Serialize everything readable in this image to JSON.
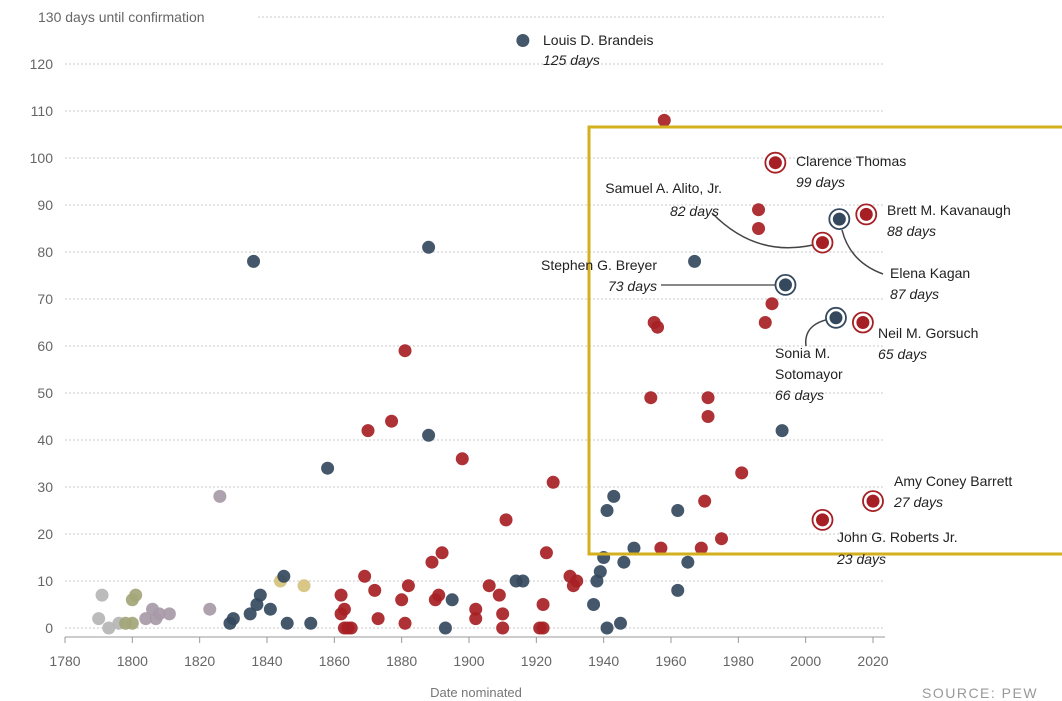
{
  "chart_data": {
    "type": "scatter",
    "title": "",
    "ylabel": "130 days until confirmation",
    "xlabel": "Date nominated",
    "xlim": [
      1780,
      2020
    ],
    "ylim": [
      0,
      130
    ],
    "x_ticks": [
      "1780",
      "1800",
      "1820",
      "1840",
      "1860",
      "1880",
      "1900",
      "1920",
      "1940",
      "1960",
      "1980",
      "2000",
      "2020"
    ],
    "y_ticks": [
      "0",
      "10",
      "20",
      "30",
      "40",
      "50",
      "60",
      "70",
      "80",
      "90",
      "100",
      "110",
      "120"
    ],
    "grid": true,
    "source": "SOURCE: PEW",
    "colors": {
      "red": "#a61f24",
      "blue": "#34495e",
      "gray": "#b5b5b5",
      "purple": "#a89aa8",
      "olive": "#a3a67a",
      "tan": "#d6c27e",
      "highlight_box": "#d4af1e"
    },
    "points": [
      {
        "x": 1790,
        "y": 2,
        "c": "gray"
      },
      {
        "x": 1791,
        "y": 7,
        "c": "gray"
      },
      {
        "x": 1793,
        "y": 0,
        "c": "gray"
      },
      {
        "x": 1796,
        "y": 1,
        "c": "gray"
      },
      {
        "x": 1798,
        "y": 1,
        "c": "olive"
      },
      {
        "x": 1800,
        "y": 1,
        "c": "olive"
      },
      {
        "x": 1800,
        "y": 6,
        "c": "olive"
      },
      {
        "x": 1801,
        "y": 7,
        "c": "olive"
      },
      {
        "x": 1804,
        "y": 2,
        "c": "purple"
      },
      {
        "x": 1806,
        "y": 4,
        "c": "purple"
      },
      {
        "x": 1807,
        "y": 2,
        "c": "purple"
      },
      {
        "x": 1808,
        "y": 3,
        "c": "purple"
      },
      {
        "x": 1811,
        "y": 3,
        "c": "purple"
      },
      {
        "x": 1823,
        "y": 4,
        "c": "purple"
      },
      {
        "x": 1826,
        "y": 28,
        "c": "purple"
      },
      {
        "x": 1829,
        "y": 1,
        "c": "blue"
      },
      {
        "x": 1830,
        "y": 2,
        "c": "blue"
      },
      {
        "x": 1835,
        "y": 3,
        "c": "blue"
      },
      {
        "x": 1836,
        "y": 78,
        "c": "blue"
      },
      {
        "x": 1837,
        "y": 5,
        "c": "blue"
      },
      {
        "x": 1838,
        "y": 7,
        "c": "blue"
      },
      {
        "x": 1841,
        "y": 4,
        "c": "blue"
      },
      {
        "x": 1844,
        "y": 10,
        "c": "tan"
      },
      {
        "x": 1845,
        "y": 11,
        "c": "blue"
      },
      {
        "x": 1846,
        "y": 1,
        "c": "blue"
      },
      {
        "x": 1851,
        "y": 9,
        "c": "tan"
      },
      {
        "x": 1853,
        "y": 1,
        "c": "blue"
      },
      {
        "x": 1858,
        "y": 34,
        "c": "blue"
      },
      {
        "x": 1862,
        "y": 3,
        "c": "red"
      },
      {
        "x": 1862,
        "y": 7,
        "c": "red"
      },
      {
        "x": 1863,
        "y": 0,
        "c": "red"
      },
      {
        "x": 1863,
        "y": 4,
        "c": "red"
      },
      {
        "x": 1864,
        "y": 0,
        "c": "red"
      },
      {
        "x": 1865,
        "y": 0,
        "c": "red"
      },
      {
        "x": 1869,
        "y": 11,
        "c": "red"
      },
      {
        "x": 1870,
        "y": 42,
        "c": "red"
      },
      {
        "x": 1872,
        "y": 8,
        "c": "red"
      },
      {
        "x": 1873,
        "y": 2,
        "c": "red"
      },
      {
        "x": 1877,
        "y": 44,
        "c": "red"
      },
      {
        "x": 1880,
        "y": 6,
        "c": "red"
      },
      {
        "x": 1881,
        "y": 59,
        "c": "red"
      },
      {
        "x": 1881,
        "y": 1,
        "c": "red"
      },
      {
        "x": 1882,
        "y": 9,
        "c": "red"
      },
      {
        "x": 1888,
        "y": 41,
        "c": "blue"
      },
      {
        "x": 1888,
        "y": 81,
        "c": "blue"
      },
      {
        "x": 1889,
        "y": 14,
        "c": "red"
      },
      {
        "x": 1890,
        "y": 6,
        "c": "red"
      },
      {
        "x": 1891,
        "y": 7,
        "c": "red"
      },
      {
        "x": 1892,
        "y": 16,
        "c": "red"
      },
      {
        "x": 1893,
        "y": 0,
        "c": "blue"
      },
      {
        "x": 1895,
        "y": 6,
        "c": "blue"
      },
      {
        "x": 1898,
        "y": 36,
        "c": "red"
      },
      {
        "x": 1902,
        "y": 4,
        "c": "red"
      },
      {
        "x": 1902,
        "y": 2,
        "c": "red"
      },
      {
        "x": 1906,
        "y": 9,
        "c": "red"
      },
      {
        "x": 1909,
        "y": 7,
        "c": "red"
      },
      {
        "x": 1910,
        "y": 3,
        "c": "red"
      },
      {
        "x": 1910,
        "y": 0,
        "c": "red"
      },
      {
        "x": 1911,
        "y": 23,
        "c": "red"
      },
      {
        "x": 1914,
        "y": 10,
        "c": "blue"
      },
      {
        "x": 1916,
        "y": 125,
        "c": "blue"
      },
      {
        "x": 1916,
        "y": 10,
        "c": "blue"
      },
      {
        "x": 1921,
        "y": 0,
        "c": "red"
      },
      {
        "x": 1922,
        "y": 0,
        "c": "red"
      },
      {
        "x": 1922,
        "y": 5,
        "c": "red"
      },
      {
        "x": 1923,
        "y": 16,
        "c": "red"
      },
      {
        "x": 1925,
        "y": 31,
        "c": "red"
      },
      {
        "x": 1930,
        "y": 11,
        "c": "red"
      },
      {
        "x": 1931,
        "y": 9,
        "c": "red"
      },
      {
        "x": 1932,
        "y": 10,
        "c": "red"
      },
      {
        "x": 1937,
        "y": 5,
        "c": "blue"
      },
      {
        "x": 1938,
        "y": 10,
        "c": "blue"
      },
      {
        "x": 1939,
        "y": 12,
        "c": "blue"
      },
      {
        "x": 1940,
        "y": 15,
        "c": "blue"
      },
      {
        "x": 1941,
        "y": 0,
        "c": "blue"
      },
      {
        "x": 1941,
        "y": 25,
        "c": "blue"
      },
      {
        "x": 1943,
        "y": 28,
        "c": "blue"
      },
      {
        "x": 1945,
        "y": 1,
        "c": "blue"
      },
      {
        "x": 1946,
        "y": 14,
        "c": "blue"
      },
      {
        "x": 1949,
        "y": 17,
        "c": "blue"
      },
      {
        "x": 1954,
        "y": 49,
        "c": "red"
      },
      {
        "x": 1955,
        "y": 65,
        "c": "red"
      },
      {
        "x": 1956,
        "y": 64,
        "c": "red"
      },
      {
        "x": 1957,
        "y": 17,
        "c": "red"
      },
      {
        "x": 1958,
        "y": 108,
        "c": "red"
      },
      {
        "x": 1962,
        "y": 8,
        "c": "blue"
      },
      {
        "x": 1962,
        "y": 25,
        "c": "blue"
      },
      {
        "x": 1965,
        "y": 14,
        "c": "blue"
      },
      {
        "x": 1967,
        "y": 78,
        "c": "blue"
      },
      {
        "x": 1969,
        "y": 17,
        "c": "red"
      },
      {
        "x": 1970,
        "y": 27,
        "c": "red"
      },
      {
        "x": 1971,
        "y": 45,
        "c": "red"
      },
      {
        "x": 1971,
        "y": 49,
        "c": "red"
      },
      {
        "x": 1975,
        "y": 19,
        "c": "red"
      },
      {
        "x": 1981,
        "y": 33,
        "c": "red"
      },
      {
        "x": 1986,
        "y": 85,
        "c": "red"
      },
      {
        "x": 1986,
        "y": 89,
        "c": "red"
      },
      {
        "x": 1988,
        "y": 65,
        "c": "red"
      },
      {
        "x": 1990,
        "y": 69,
        "c": "red"
      },
      {
        "x": 1993,
        "y": 42,
        "c": "blue"
      }
    ],
    "highlighted": [
      {
        "x": 1991,
        "y": 99,
        "c": "red",
        "name": "Clarence Thomas",
        "days": "99 days"
      },
      {
        "x": 1994,
        "y": 73,
        "c": "blue",
        "name": "Stephen G. Breyer",
        "days": "73 days"
      },
      {
        "x": 2005,
        "y": 23,
        "c": "red",
        "name": "John G. Roberts Jr.",
        "days": "23 days"
      },
      {
        "x": 2005,
        "y": 82,
        "c": "red",
        "name": "Samuel A. Alito, Jr.",
        "days": "82 days"
      },
      {
        "x": 2009,
        "y": 66,
        "c": "blue",
        "name": "Sonia M. Sotomayor",
        "days": "66 days"
      },
      {
        "x": 2010,
        "y": 87,
        "c": "blue",
        "name": "Elena Kagan",
        "days": "87 days"
      },
      {
        "x": 2017,
        "y": 65,
        "c": "red",
        "name": "Neil M. Gorsuch",
        "days": "65 days"
      },
      {
        "x": 2018,
        "y": 88,
        "c": "red",
        "name": "Brett M. Kavanaugh",
        "days": "88 days"
      },
      {
        "x": 2020,
        "y": 27,
        "c": "red",
        "name": "Amy Coney Barrett",
        "days": "27 days"
      }
    ],
    "annotations": {
      "brandeis": {
        "name": "Louis D. Brandeis",
        "days": "125 days"
      },
      "thomas": {
        "name": "Clarence Thomas",
        "days": "99 days"
      },
      "alito": {
        "name": "Samuel A. Alito, Jr.",
        "days": "82 days"
      },
      "kavanaugh": {
        "name": "Brett M. Kavanaugh",
        "days": "88 days"
      },
      "breyer": {
        "name": "Stephen G. Breyer",
        "days": "73 days"
      },
      "kagan": {
        "name": "Elena Kagan",
        "days": "87 days"
      },
      "sotomayor": {
        "name1": "Sonia M.",
        "name2": "Sotomayor",
        "days": "66 days"
      },
      "gorsuch": {
        "name": "Neil M. Gorsuch",
        "days": "65 days"
      },
      "barrett": {
        "name": "Amy Coney Barrett",
        "days": "27 days"
      },
      "roberts": {
        "name": "John G. Roberts Jr.",
        "days": "23 days"
      }
    }
  }
}
